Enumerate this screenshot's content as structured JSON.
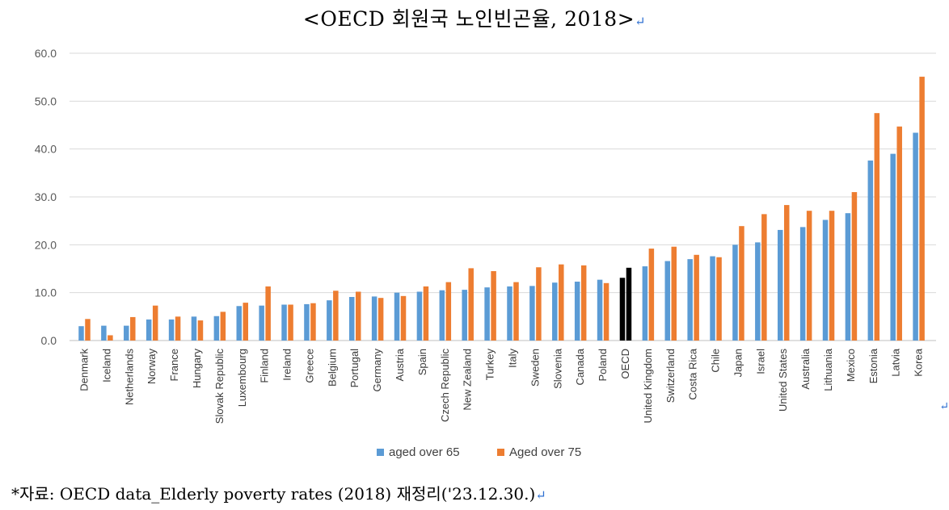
{
  "page": {
    "title": "<OECD 회원국 노인빈곤율, 2018>",
    "paragraph_mark": "↵",
    "source": "*자료: OECD data_Elderly poverty rates (2018) 재정리('23.12.30.)"
  },
  "colors": {
    "series1": "#5b9bd5",
    "series2": "#ed7d31",
    "highlight": "#000000",
    "grid": "#d9d9d9"
  },
  "chart_data": {
    "type": "bar",
    "title": "<OECD 회원국 노인빈곤율, 2018>",
    "xlabel": "",
    "ylabel": "",
    "ylim": [
      0,
      60
    ],
    "yticks": [
      "0.0",
      "10.0",
      "20.0",
      "30.0",
      "40.0",
      "50.0",
      "60.0"
    ],
    "grid": true,
    "legend_position": "bottom",
    "highlight_category": "OECD",
    "categories": [
      "Denmark",
      "Iceland",
      "Netherlands",
      "Norway",
      "France",
      "Hungary",
      "Slovak Republic",
      "Luxembourg",
      "Finland",
      "Ireland",
      "Greece",
      "Belgium",
      "Portugal",
      "Germany",
      "Austria",
      "Spain",
      "Czech Republic",
      "New Zealand",
      "Turkey",
      "Italy",
      "Sweden",
      "Slovenia",
      "Canada",
      "Poland",
      "OECD",
      "United Kingdom",
      "Switzerland",
      "Costa Rica",
      "Chile",
      "Japan",
      "Israel",
      "United States",
      "Australia",
      "Lithuania",
      "Mexico",
      "Estonia",
      "Latvia",
      "Korea"
    ],
    "series": [
      {
        "name": "aged over 65",
        "values": [
          3.0,
          3.1,
          3.1,
          4.4,
          4.4,
          5.0,
          5.1,
          7.2,
          7.3,
          7.5,
          7.6,
          8.4,
          9.1,
          9.2,
          10.0,
          10.2,
          10.5,
          10.6,
          11.1,
          11.3,
          11.4,
          12.1,
          12.3,
          12.7,
          13.1,
          15.5,
          16.6,
          17.0,
          17.6,
          20.0,
          20.5,
          23.1,
          23.7,
          25.2,
          26.6,
          37.6,
          39.0,
          43.4
        ]
      },
      {
        "name": "Aged over 75",
        "values": [
          4.5,
          1.1,
          4.9,
          7.3,
          5.0,
          4.2,
          6.0,
          7.9,
          11.3,
          7.5,
          7.8,
          10.4,
          10.2,
          8.9,
          9.3,
          11.3,
          12.2,
          15.1,
          14.5,
          12.2,
          15.3,
          15.9,
          15.7,
          12.0,
          15.2,
          19.2,
          19.6,
          17.9,
          17.4,
          23.9,
          26.4,
          28.3,
          27.1,
          27.1,
          31.0,
          47.5,
          44.7,
          55.1
        ]
      }
    ]
  }
}
